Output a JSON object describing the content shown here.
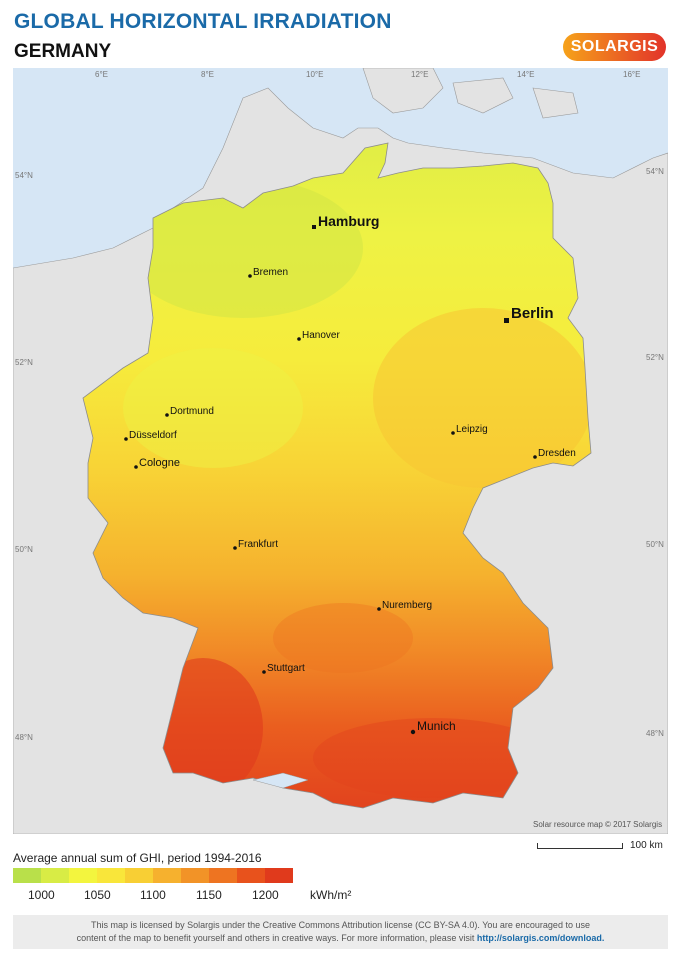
{
  "header": {
    "title": "GLOBAL HORIZONTAL IRRADIATION",
    "country": "GERMANY",
    "logo_text": "SOLARGIS"
  },
  "map": {
    "cities": [
      {
        "name": "Hamburg",
        "size": "large"
      },
      {
        "name": "Bremen",
        "size": "small"
      },
      {
        "name": "Berlin",
        "size": "large"
      },
      {
        "name": "Hanover",
        "size": "small"
      },
      {
        "name": "Dortmund",
        "size": "small"
      },
      {
        "name": "Düsseldorf",
        "size": "small"
      },
      {
        "name": "Cologne",
        "size": "medium"
      },
      {
        "name": "Leipzig",
        "size": "small"
      },
      {
        "name": "Dresden",
        "size": "small"
      },
      {
        "name": "Frankfurt",
        "size": "small"
      },
      {
        "name": "Nuremberg",
        "size": "small"
      },
      {
        "name": "Stuttgart",
        "size": "small"
      },
      {
        "name": "Munich",
        "size": "medium"
      }
    ],
    "lon_labels": [
      "6°E",
      "8°E",
      "10°E",
      "12°E",
      "14°E",
      "16°E"
    ],
    "lat_labels_left": [
      "54°N",
      "52°N",
      "50°N",
      "48°N"
    ],
    "lat_labels_right": [
      "54°N",
      "52°N",
      "50°N",
      "48°N"
    ],
    "credit": "Solar resource map © 2017 Solargis"
  },
  "scale": {
    "label": "100 km"
  },
  "legend": {
    "caption": "Average annual sum of GHI, period 1994-2016",
    "colors": [
      "#b9e04a",
      "#d8ec45",
      "#f3f53e",
      "#f9e63a",
      "#f8cf34",
      "#f6b12e",
      "#f29327",
      "#ee7421",
      "#e8521c",
      "#e03a1c"
    ],
    "ticks": [
      "1000",
      "1050",
      "1100",
      "1150",
      "1200"
    ],
    "unit": "kWh/m²"
  },
  "footer": {
    "line1": "This map is licensed by Solargis under the Creative Commons Attribution license (CC BY-SA 4.0). You are encouraged to use",
    "line2": "content of the map to benefit yourself and others in creative ways. For more information, please visit",
    "link": "http://solargis.com/download."
  },
  "colors": {
    "sea": "#d6e6f5",
    "land": "#e3e3e3",
    "title": "#1a6aa8"
  }
}
